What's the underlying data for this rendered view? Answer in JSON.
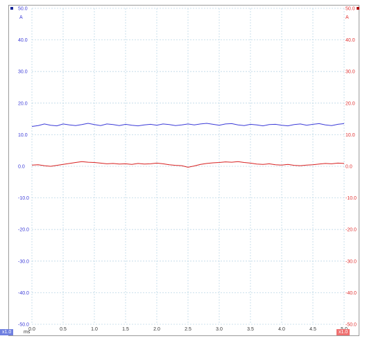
{
  "chart_data": {
    "type": "line",
    "x_unit": "ms",
    "xlim": [
      0.0,
      5.0
    ],
    "x_ticks": [
      "0.0",
      "0.5",
      "1.0",
      "1.5",
      "2.0",
      "2.5",
      "3.0",
      "3.5",
      "4.0",
      "4.5",
      "5.0"
    ],
    "ylim": [
      -50,
      50
    ],
    "y_ticks": [
      "50.0",
      "40.0",
      "30.0",
      "20.0",
      "10.0",
      "0.0",
      "-10.0",
      "-20.0",
      "-30.0",
      "-40.0",
      "-50.0"
    ],
    "left_axis": {
      "unit": "A",
      "color": "#3c3cd8"
    },
    "right_axis": {
      "unit": "A",
      "color": "#e03030"
    },
    "grid": true,
    "x": [
      0.0,
      0.1,
      0.2,
      0.3,
      0.4,
      0.5,
      0.6,
      0.7,
      0.8,
      0.9,
      1.0,
      1.1,
      1.2,
      1.3,
      1.4,
      1.5,
      1.6,
      1.7,
      1.8,
      1.9,
      2.0,
      2.1,
      2.2,
      2.3,
      2.4,
      2.5,
      2.6,
      2.7,
      2.8,
      2.9,
      3.0,
      3.1,
      3.2,
      3.3,
      3.4,
      3.5,
      3.6,
      3.7,
      3.8,
      3.9,
      4.0,
      4.1,
      4.2,
      4.3,
      4.4,
      4.5,
      4.6,
      4.7,
      4.8,
      4.9,
      5.0
    ],
    "series": [
      {
        "color": "#3a3ad8",
        "values": [
          12.6,
          12.9,
          13.4,
          13.0,
          12.8,
          13.4,
          13.1,
          12.9,
          13.2,
          13.6,
          13.2,
          12.9,
          13.4,
          13.2,
          12.9,
          13.3,
          13.0,
          12.8,
          13.1,
          13.3,
          13.0,
          13.4,
          13.2,
          12.9,
          13.1,
          13.4,
          13.1,
          13.4,
          13.6,
          13.3,
          13.0,
          13.4,
          13.5,
          13.1,
          12.9,
          13.3,
          13.1,
          12.8,
          13.2,
          13.3,
          13.0,
          12.8,
          13.2,
          13.4,
          13.0,
          13.3,
          13.5,
          13.1,
          12.9,
          13.3,
          13.5
        ]
      },
      {
        "color": "#d82020",
        "values": [
          0.4,
          0.5,
          0.2,
          0.0,
          0.3,
          0.6,
          0.9,
          1.2,
          1.5,
          1.3,
          1.2,
          1.0,
          0.8,
          0.9,
          0.7,
          0.8,
          0.6,
          0.9,
          0.7,
          0.8,
          1.0,
          0.8,
          0.5,
          0.3,
          0.2,
          -0.3,
          0.1,
          0.6,
          0.9,
          1.1,
          1.2,
          1.4,
          1.3,
          1.5,
          1.2,
          1.0,
          0.7,
          0.6,
          0.8,
          0.5,
          0.4,
          0.6,
          0.3,
          0.2,
          0.4,
          0.5,
          0.7,
          0.9,
          0.8,
          1.0,
          0.9
        ]
      }
    ]
  },
  "footer": {
    "left_scale": "x1.0",
    "right_scale": "x1.0",
    "x_unit": "ms"
  }
}
